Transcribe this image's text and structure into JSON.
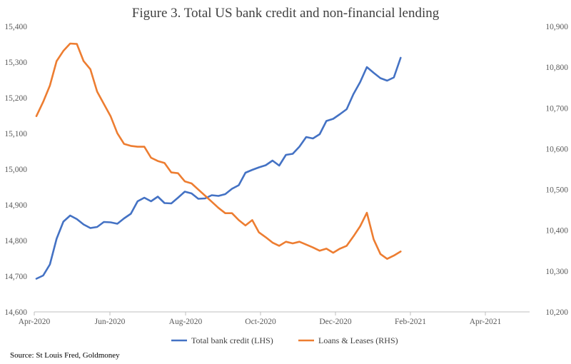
{
  "chart_data": {
    "type": "line",
    "title": "Figure 3. Total US bank credit and non-financial lending",
    "x_tick_labels": [
      "Apr-2020",
      "Jun-2020",
      "Aug-2020",
      "Oct-2020",
      "Dec-2020",
      "Feb-2021",
      "Apr-2021"
    ],
    "left_axis": {
      "ticks": [
        "14,600",
        "14,700",
        "14,800",
        "14,900",
        "15,000",
        "15,100",
        "15,200",
        "15,300",
        "15,400"
      ],
      "ylim": [
        14600,
        15400
      ]
    },
    "right_axis": {
      "ticks": [
        "10,200",
        "10,300",
        "10,400",
        "10,500",
        "10,600",
        "10,700",
        "10,800",
        "10,900"
      ],
      "ylim": [
        10200,
        10900
      ]
    },
    "series": [
      {
        "name": "Total bank credit (LHS)",
        "axis": "left",
        "color": "#4472C4",
        "values": [
          14693,
          14702,
          14733,
          14805,
          14853,
          14870,
          14860,
          14845,
          14835,
          14838,
          14852,
          14851,
          14847,
          14862,
          14875,
          14910,
          14920,
          14910,
          14923,
          14905,
          14904,
          14920,
          14937,
          14932,
          14917,
          14918,
          14927,
          14925,
          14930,
          14945,
          14955,
          14990,
          14998,
          15005,
          15011,
          15024,
          15010,
          15040,
          15043,
          15063,
          15090,
          15086,
          15098,
          15135,
          15141,
          15154,
          15168,
          15210,
          15244,
          15286,
          15270,
          15255,
          15248,
          15257,
          15312
        ]
      },
      {
        "name": "Loans & Leases (RHS)",
        "axis": "right",
        "color": "#ED7D31",
        "values": [
          10680,
          10715,
          10755,
          10815,
          10840,
          10858,
          10857,
          10815,
          10795,
          10740,
          10710,
          10680,
          10638,
          10612,
          10607,
          10605,
          10605,
          10578,
          10570,
          10565,
          10542,
          10540,
          10520,
          10515,
          10500,
          10485,
          10470,
          10455,
          10442,
          10442,
          10425,
          10412,
          10425,
          10395,
          10383,
          10370,
          10362,
          10372,
          10368,
          10372,
          10365,
          10358,
          10350,
          10355,
          10345,
          10355,
          10362,
          10385,
          10410,
          10443,
          10378,
          10342,
          10330,
          10338,
          10348
        ]
      }
    ],
    "legend_position": "bottom",
    "grid": false
  },
  "source": "Source: St Louis Fred, Goldmoney"
}
